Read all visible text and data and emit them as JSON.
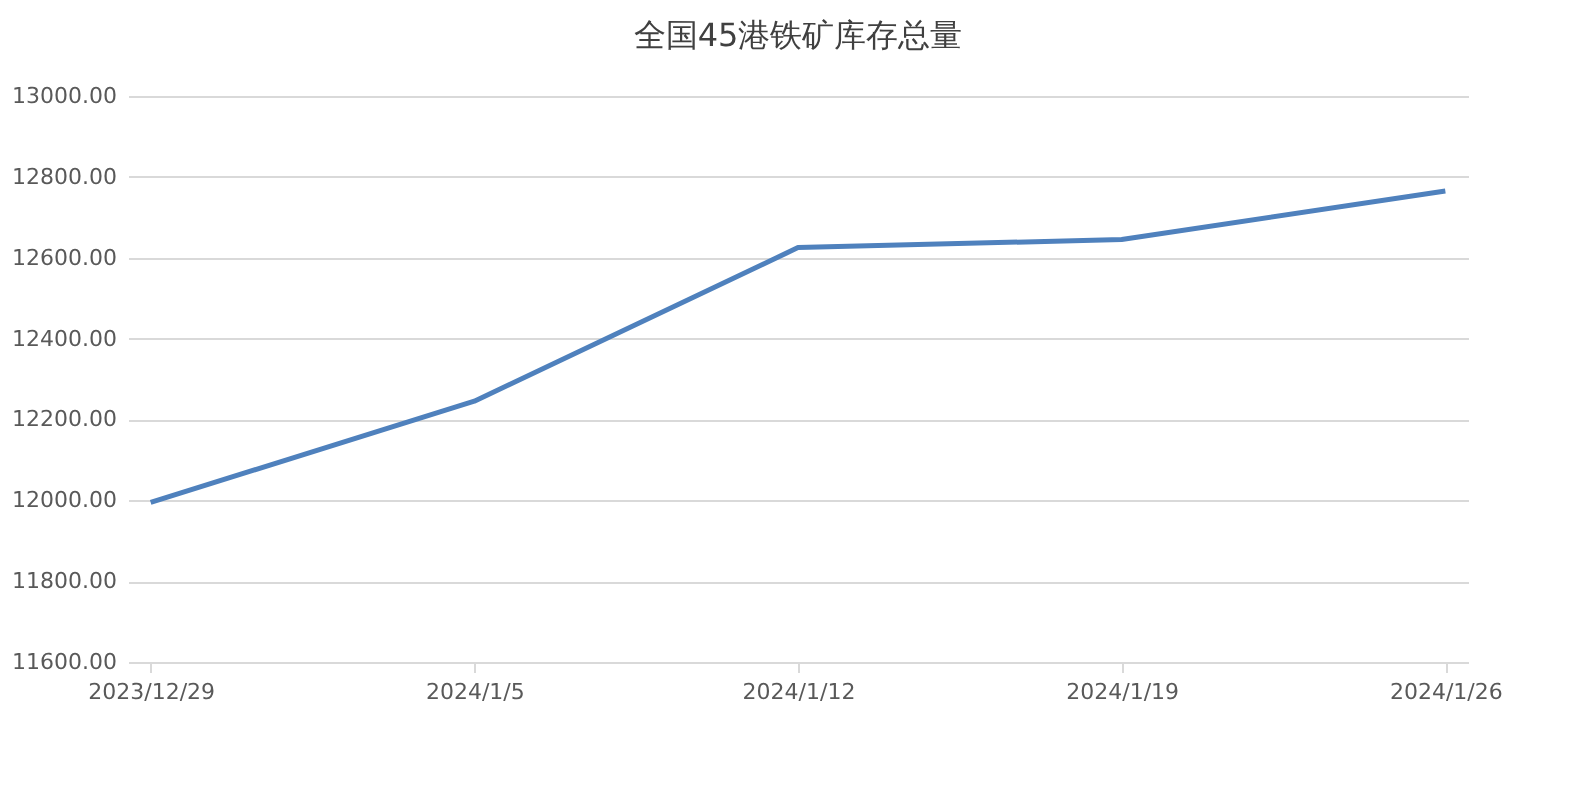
{
  "chart_data": {
    "type": "line",
    "title": "全国45港铁矿库存总量",
    "categories": [
      "2023/12/29",
      "2024/1/5",
      "2024/1/12",
      "2024/1/19",
      "2024/1/26"
    ],
    "series": [
      {
        "color": "#4f81bd",
        "values": [
          11995,
          12245,
          12625,
          12645,
          12765
        ]
      }
    ],
    "ylim": [
      11600,
      13000
    ],
    "yticks": [
      {
        "value": 11600,
        "label": "11600.00"
      },
      {
        "value": 11800,
        "label": "11800.00"
      },
      {
        "value": 12000,
        "label": "12000.00"
      },
      {
        "value": 12200,
        "label": "12200.00"
      },
      {
        "value": 12400,
        "label": "12400.00"
      },
      {
        "value": 12600,
        "label": "12600.00"
      },
      {
        "value": 12800,
        "label": "12800.00"
      },
      {
        "value": 13000,
        "label": "13000.00"
      }
    ],
    "grid": "y",
    "marker": "none",
    "line_style": "solid"
  }
}
